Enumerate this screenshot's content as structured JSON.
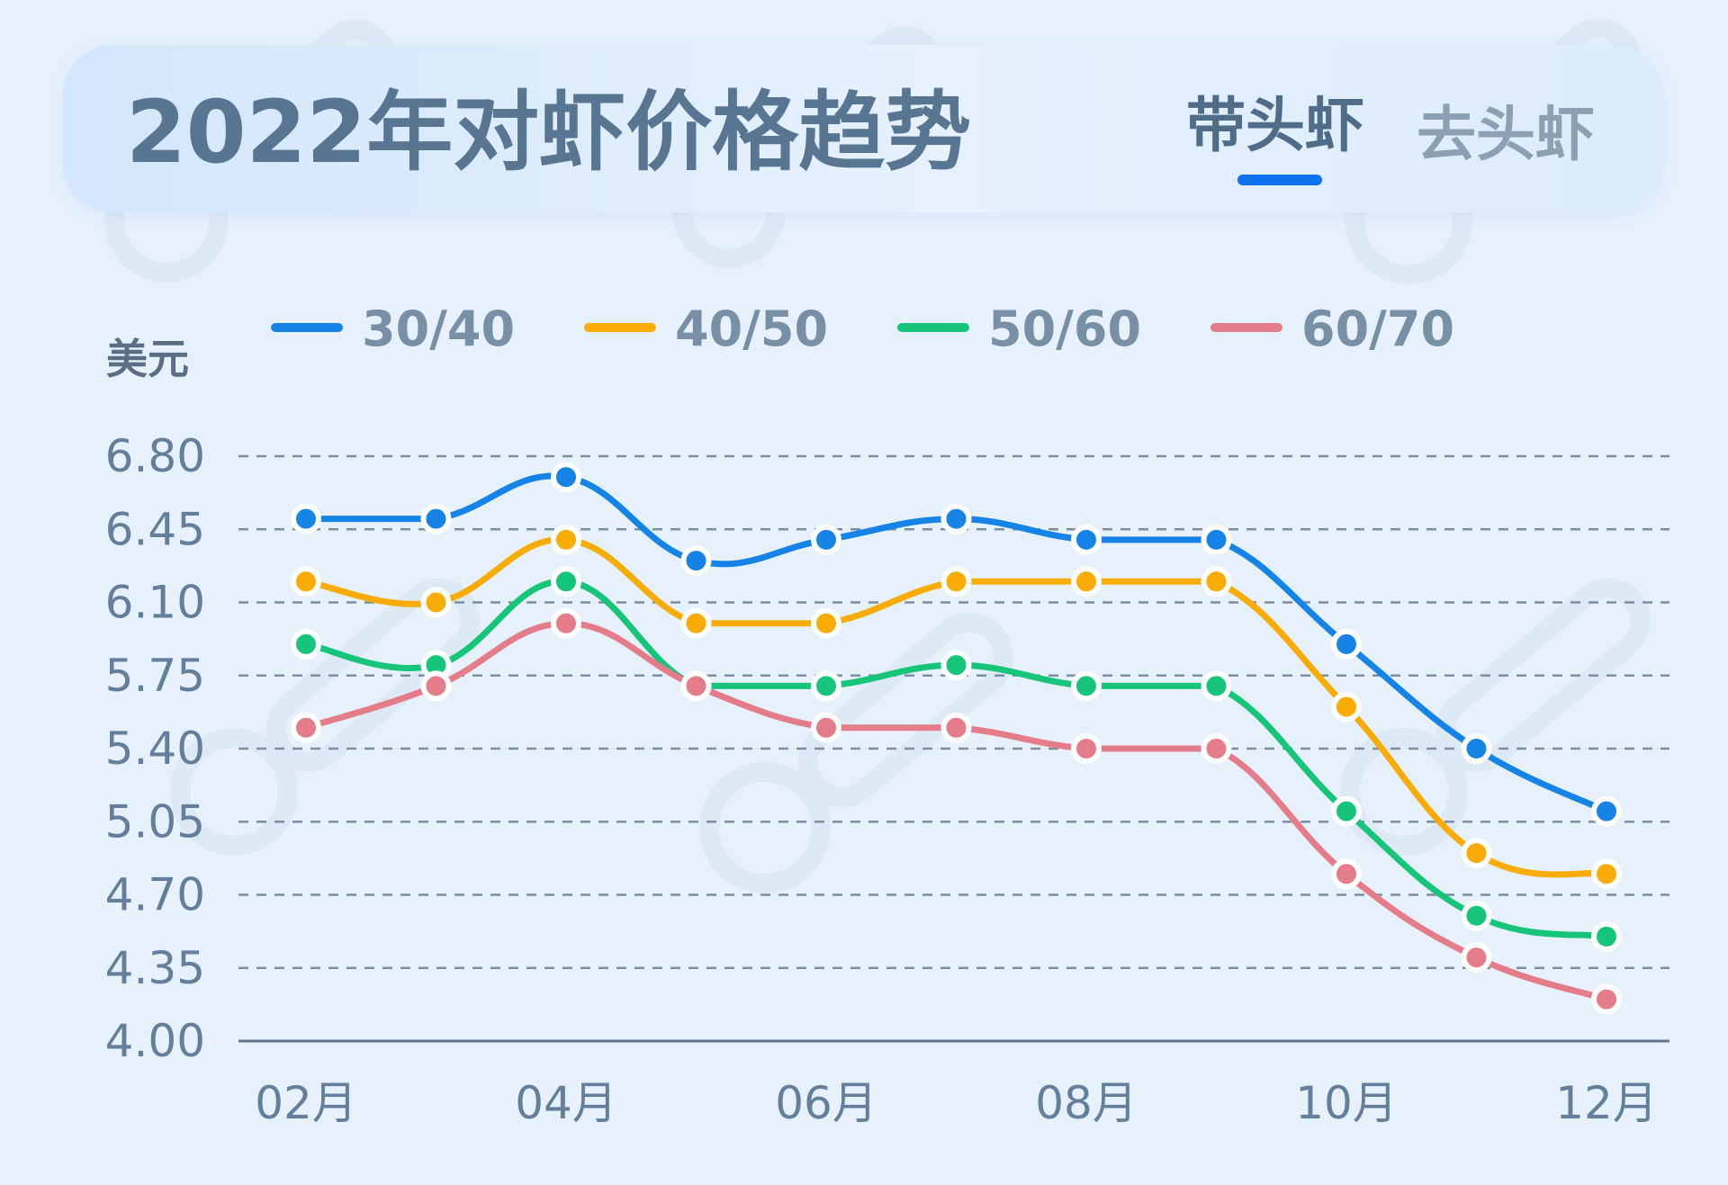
{
  "header": {
    "title": "2022年对虾价格趋势",
    "tabs": [
      {
        "label": "带头虾",
        "active": true
      },
      {
        "label": "去头虾",
        "active": false
      }
    ],
    "accent_color": "#0e72ee"
  },
  "chart_data": {
    "type": "line",
    "title": "2022年对虾价格趋势",
    "ylabel": "美元",
    "xlabel": "",
    "categories": [
      "02月",
      "03月",
      "04月",
      "05月",
      "06月",
      "07月",
      "08月",
      "09月",
      "10月",
      "11月",
      "12月"
    ],
    "x_tick_labels": [
      "02月",
      "",
      "04月",
      "",
      "06月",
      "",
      "08月",
      "",
      "10月",
      "",
      "12月"
    ],
    "y_ticks": [
      "4.00",
      "4.35",
      "4.70",
      "5.05",
      "5.40",
      "5.75",
      "6.10",
      "6.45",
      "6.80"
    ],
    "ylim": [
      4.0,
      6.8
    ],
    "grid": "horizontal-dashed",
    "legend_position": "top",
    "smooth": true,
    "series": [
      {
        "name": "30/40",
        "color": "#1684e6",
        "values": [
          6.5,
          6.5,
          6.7,
          6.3,
          6.4,
          6.5,
          6.4,
          6.4,
          5.9,
          5.4,
          5.1
        ]
      },
      {
        "name": "40/50",
        "color": "#f9ab06",
        "values": [
          6.2,
          6.1,
          6.4,
          6.0,
          6.0,
          6.2,
          6.2,
          6.2,
          5.6,
          4.9,
          4.8
        ]
      },
      {
        "name": "50/60",
        "color": "#16c57a",
        "values": [
          5.9,
          5.8,
          6.2,
          5.7,
          5.7,
          5.8,
          5.7,
          5.7,
          5.1,
          4.6,
          4.5
        ]
      },
      {
        "name": "60/70",
        "color": "#e47c8a",
        "values": [
          5.5,
          5.7,
          6.0,
          5.7,
          5.5,
          5.5,
          5.4,
          5.4,
          4.8,
          4.4,
          4.2
        ]
      }
    ]
  }
}
